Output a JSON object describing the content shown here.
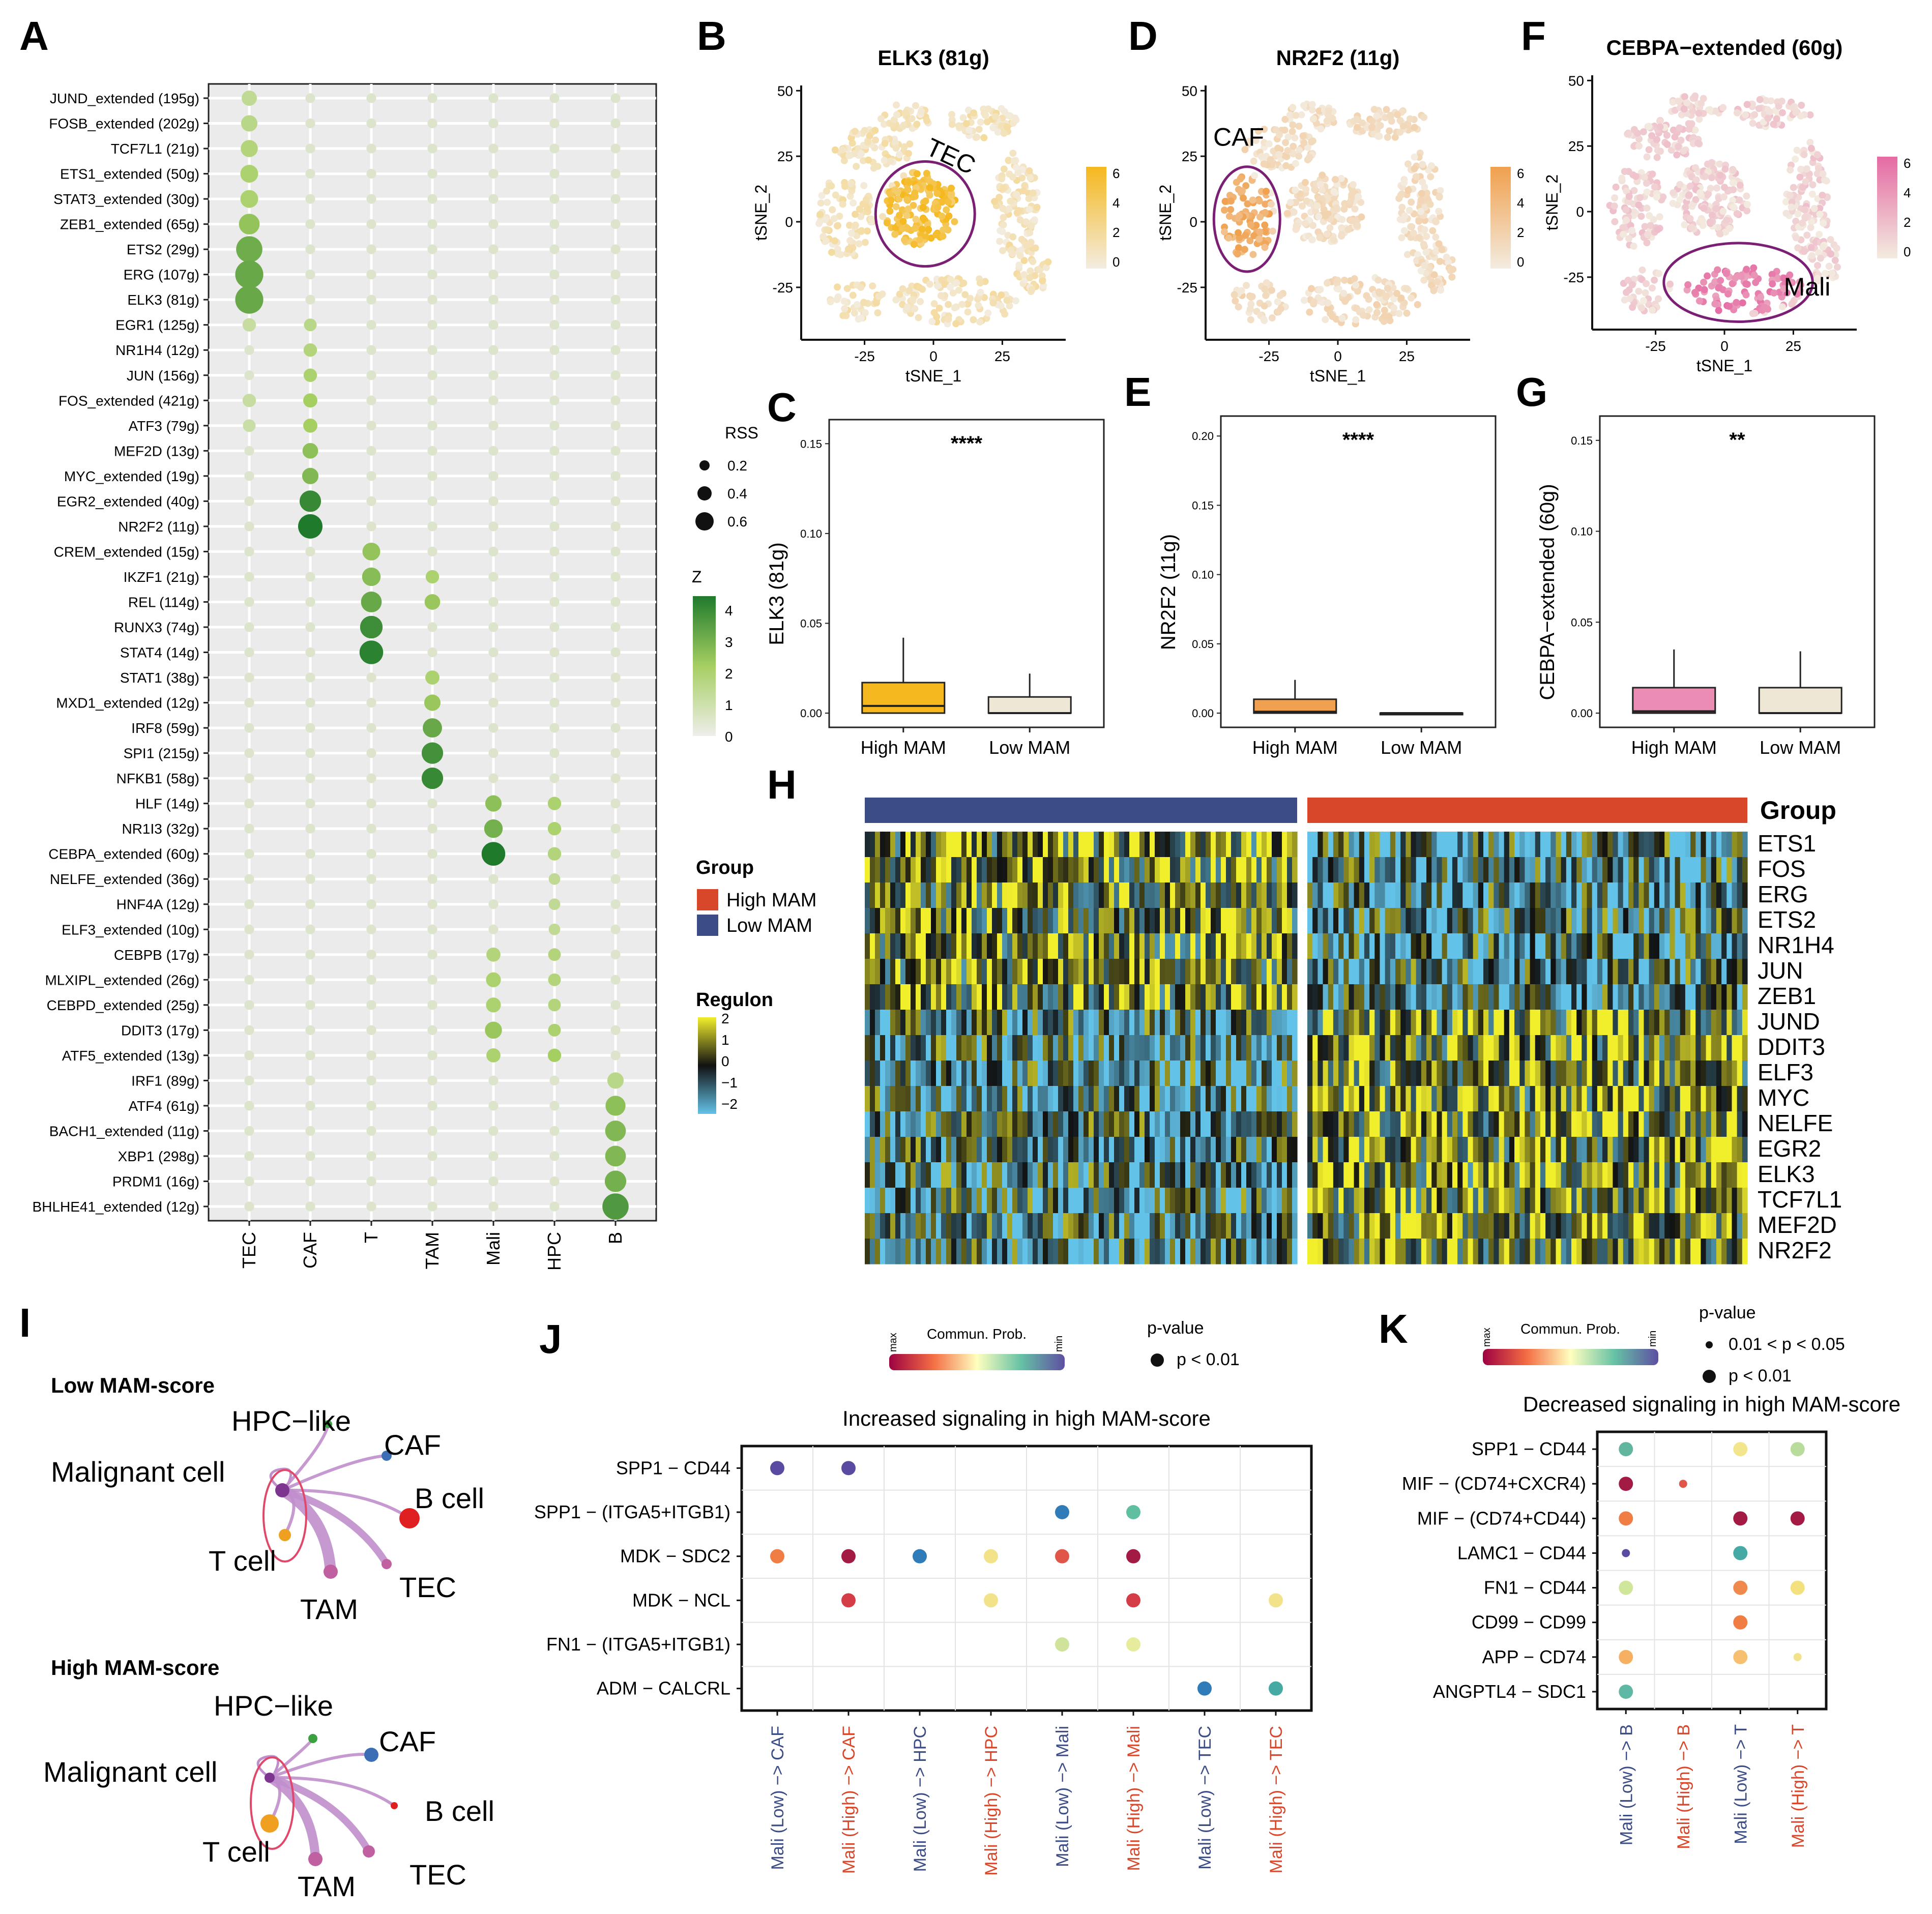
{
  "panel_letters": [
    "A",
    "B",
    "C",
    "D",
    "E",
    "F",
    "G",
    "H",
    "I",
    "J",
    "K"
  ],
  "colors": {
    "dot_low": "#e3ead6",
    "dot_mid": "#a6cf62",
    "dot_high": "#1f7a2c",
    "elk3_high": "#f5b81e",
    "nr2f2_high": "#f0a04e",
    "cebpa_high": "#e56aa3",
    "box_high_elk3": "#f5b81e",
    "box_high_nr2f2": "#f0a04e",
    "box_high_cebpa": "#ea8cb3",
    "box_low": "#efe7d6",
    "group_high": "#d9472b",
    "group_low": "#3b4c86",
    "outline": "#7a1f74",
    "label_high": "#d9472b",
    "label_low": "#3b4c86"
  },
  "chart_data": [
    {
      "panel": "A",
      "type": "scatter",
      "title": "",
      "xlabel": "",
      "ylabel": "",
      "x_categories": [
        "TEC",
        "CAF",
        "T",
        "TAM",
        "Mali",
        "HPC",
        "B"
      ],
      "y_categories": [
        "JUND_extended (195g)",
        "FOSB_extended (202g)",
        "TCF7L1 (21g)",
        "ETS1_extended (50g)",
        "STAT3_extended (30g)",
        "ZEB1_extended (65g)",
        "ETS2 (29g)",
        "ERG (107g)",
        "ELK3 (81g)",
        "EGR1 (125g)",
        "NR1H4 (12g)",
        "JUN (156g)",
        "FOS_extended (421g)",
        "ATF3 (79g)",
        "MEF2D (13g)",
        "MYC_extended (19g)",
        "EGR2_extended (40g)",
        "NR2F2 (11g)",
        "CREM_extended (15g)",
        "IKZF1 (21g)",
        "REL (114g)",
        "RUNX3 (74g)",
        "STAT4 (14g)",
        "STAT1 (38g)",
        "MXD1_extended (12g)",
        "IRF8 (59g)",
        "SPI1 (215g)",
        "NFKB1 (58g)",
        "HLF (14g)",
        "NR1I3 (32g)",
        "CEBPA_extended (60g)",
        "NELFE_extended (36g)",
        "HNF4A (12g)",
        "ELF3_extended (10g)",
        "CEBPB (17g)",
        "MLXIPL_extended (26g)",
        "CEBPD_extended (25g)",
        "DDIT3 (17g)",
        "ATF5_extended (13g)",
        "IRF1 (89g)",
        "ATF4 (61g)",
        "BACH1_extended (11g)",
        "XBP1 (298g)",
        "PRDM1 (16g)",
        "BHLHE41_extended (12g)"
      ],
      "highlights": [
        {
          "row": 0,
          "col": 0,
          "rss": 0.25,
          "z": 1.2
        },
        {
          "row": 1,
          "col": 0,
          "rss": 0.28,
          "z": 1.4
        },
        {
          "row": 2,
          "col": 0,
          "rss": 0.3,
          "z": 1.6
        },
        {
          "row": 3,
          "col": 0,
          "rss": 0.32,
          "z": 1.8
        },
        {
          "row": 4,
          "col": 0,
          "rss": 0.32,
          "z": 1.8
        },
        {
          "row": 5,
          "col": 0,
          "rss": 0.4,
          "z": 2.3
        },
        {
          "row": 6,
          "col": 0,
          "rss": 0.55,
          "z": 2.9
        },
        {
          "row": 7,
          "col": 0,
          "rss": 0.6,
          "z": 3.0
        },
        {
          "row": 8,
          "col": 0,
          "rss": 0.6,
          "z": 3.0
        },
        {
          "row": 9,
          "col": 0,
          "rss": 0.2,
          "z": 1.0
        },
        {
          "row": 12,
          "col": 0,
          "rss": 0.2,
          "z": 1.0
        },
        {
          "row": 13,
          "col": 0,
          "rss": 0.18,
          "z": 0.9
        },
        {
          "row": 9,
          "col": 1,
          "rss": 0.18,
          "z": 1.4
        },
        {
          "row": 10,
          "col": 1,
          "rss": 0.2,
          "z": 1.6
        },
        {
          "row": 11,
          "col": 1,
          "rss": 0.2,
          "z": 1.8
        },
        {
          "row": 12,
          "col": 1,
          "rss": 0.22,
          "z": 2.0
        },
        {
          "row": 13,
          "col": 1,
          "rss": 0.22,
          "z": 2.0
        },
        {
          "row": 14,
          "col": 1,
          "rss": 0.26,
          "z": 2.4
        },
        {
          "row": 15,
          "col": 1,
          "rss": 0.28,
          "z": 2.6
        },
        {
          "row": 16,
          "col": 1,
          "rss": 0.42,
          "z": 3.8
        },
        {
          "row": 17,
          "col": 1,
          "rss": 0.5,
          "z": 4.2
        },
        {
          "row": 18,
          "col": 2,
          "rss": 0.32,
          "z": 2.3
        },
        {
          "row": 19,
          "col": 2,
          "rss": 0.34,
          "z": 2.5
        },
        {
          "row": 20,
          "col": 2,
          "rss": 0.4,
          "z": 3.0
        },
        {
          "row": 21,
          "col": 2,
          "rss": 0.45,
          "z": 3.7
        },
        {
          "row": 22,
          "col": 2,
          "rss": 0.48,
          "z": 4.0
        },
        {
          "row": 19,
          "col": 3,
          "rss": 0.2,
          "z": 1.8
        },
        {
          "row": 20,
          "col": 3,
          "rss": 0.26,
          "z": 2.2
        },
        {
          "row": 23,
          "col": 3,
          "rss": 0.22,
          "z": 1.8
        },
        {
          "row": 24,
          "col": 3,
          "rss": 0.28,
          "z": 2.2
        },
        {
          "row": 25,
          "col": 3,
          "rss": 0.36,
          "z": 3.0
        },
        {
          "row": 26,
          "col": 3,
          "rss": 0.42,
          "z": 3.6
        },
        {
          "row": 27,
          "col": 3,
          "rss": 0.42,
          "z": 3.8
        },
        {
          "row": 28,
          "col": 4,
          "rss": 0.28,
          "z": 2.4
        },
        {
          "row": 29,
          "col": 4,
          "rss": 0.34,
          "z": 2.8
        },
        {
          "row": 30,
          "col": 4,
          "rss": 0.48,
          "z": 4.2
        },
        {
          "row": 34,
          "col": 4,
          "rss": 0.22,
          "z": 1.6
        },
        {
          "row": 35,
          "col": 4,
          "rss": 0.24,
          "z": 1.8
        },
        {
          "row": 36,
          "col": 4,
          "rss": 0.24,
          "z": 1.8
        },
        {
          "row": 37,
          "col": 4,
          "rss": 0.3,
          "z": 2.2
        },
        {
          "row": 38,
          "col": 4,
          "rss": 0.22,
          "z": 1.8
        },
        {
          "row": 28,
          "col": 5,
          "rss": 0.2,
          "z": 1.8
        },
        {
          "row": 29,
          "col": 5,
          "rss": 0.2,
          "z": 1.8
        },
        {
          "row": 30,
          "col": 5,
          "rss": 0.2,
          "z": 1.6
        },
        {
          "row": 31,
          "col": 5,
          "rss": 0.15,
          "z": 1.2
        },
        {
          "row": 32,
          "col": 5,
          "rss": 0.15,
          "z": 1.2
        },
        {
          "row": 33,
          "col": 5,
          "rss": 0.15,
          "z": 1.2
        },
        {
          "row": 34,
          "col": 5,
          "rss": 0.18,
          "z": 1.6
        },
        {
          "row": 35,
          "col": 5,
          "rss": 0.18,
          "z": 1.6
        },
        {
          "row": 36,
          "col": 5,
          "rss": 0.18,
          "z": 1.6
        },
        {
          "row": 37,
          "col": 5,
          "rss": 0.18,
          "z": 1.8
        },
        {
          "row": 38,
          "col": 5,
          "rss": 0.2,
          "z": 2.0
        },
        {
          "row": 39,
          "col": 6,
          "rss": 0.28,
          "z": 1.4
        },
        {
          "row": 40,
          "col": 6,
          "rss": 0.38,
          "z": 2.4
        },
        {
          "row": 41,
          "col": 6,
          "rss": 0.4,
          "z": 2.6
        },
        {
          "row": 42,
          "col": 6,
          "rss": 0.4,
          "z": 2.6
        },
        {
          "row": 43,
          "col": 6,
          "rss": 0.42,
          "z": 2.8
        },
        {
          "row": 44,
          "col": 6,
          "rss": 0.55,
          "z": 3.4
        }
      ],
      "legend": {
        "rss_title": "RSS",
        "rss_values": [
          "0.2",
          "0.4",
          "0.6"
        ],
        "z_title": "Z",
        "z_ticks": [
          "4",
          "3",
          "2",
          "1",
          "0"
        ]
      }
    },
    {
      "panel": "B",
      "type": "scatter",
      "title": "ELK3 (81g)",
      "xlabel": "tSNE_1",
      "ylabel": "tSNE_2",
      "x_ticks": [
        "-25",
        "0",
        "25"
      ],
      "y_ticks": [
        "50",
        "25",
        "0",
        "-25"
      ],
      "xlim": [
        -48,
        48
      ],
      "ylim": [
        -45,
        52
      ],
      "legend_ticks": [
        "6",
        "4",
        "2",
        "0"
      ],
      "annotation": "TEC"
    },
    {
      "panel": "D",
      "type": "scatter",
      "title": "NR2F2 (11g)",
      "xlabel": "tSNE_1",
      "ylabel": "tSNE_2",
      "x_ticks": [
        "-25",
        "0",
        "25"
      ],
      "y_ticks": [
        "50",
        "25",
        "0",
        "-25"
      ],
      "xlim": [
        -48,
        48
      ],
      "ylim": [
        -45,
        52
      ],
      "legend_ticks": [
        "6",
        "4",
        "2",
        "0"
      ],
      "annotation": "CAF"
    },
    {
      "panel": "F",
      "type": "scatter",
      "title": "CEBPA−extended (60g)",
      "xlabel": "tSNE_1",
      "ylabel": "tSNE_2",
      "x_ticks": [
        "-25",
        "0",
        "25"
      ],
      "y_ticks": [
        "50",
        "25",
        "0",
        "-25"
      ],
      "xlim": [
        -48,
        48
      ],
      "ylim": [
        -45,
        52
      ],
      "legend_ticks": [
        "6",
        "4",
        "2",
        "0"
      ],
      "annotation": "Mali"
    },
    {
      "panel": "C",
      "type": "bar",
      "title": "",
      "xlabel": "",
      "ylabel": "ELK3 (81g)",
      "categories": [
        "High MAM",
        "Low MAM"
      ],
      "y_ticks": [
        "0.15",
        "0.10",
        "0.05",
        "0.00"
      ],
      "ylim": [
        0,
        0.16
      ],
      "boxes": [
        {
          "q1": 0.0,
          "median": 0.004,
          "q3": 0.017,
          "whisker": 0.042
        },
        {
          "q1": 0.0,
          "median": 0.0,
          "q3": 0.009,
          "whisker": 0.022
        }
      ],
      "significance": "****"
    },
    {
      "panel": "E",
      "type": "bar",
      "title": "",
      "xlabel": "",
      "ylabel": "NR2F2 (11g)",
      "categories": [
        "High MAM",
        "Low MAM"
      ],
      "y_ticks": [
        "0.20",
        "0.15",
        "0.10",
        "0.05",
        "0.00"
      ],
      "ylim": [
        0,
        0.21
      ],
      "boxes": [
        {
          "q1": 0.0,
          "median": 0.001,
          "q3": 0.01,
          "whisker": 0.024
        },
        {
          "q1": 0.0,
          "median": 0.0,
          "q3": 0.0,
          "whisker": 0.0
        }
      ],
      "significance": "****"
    },
    {
      "panel": "G",
      "type": "bar",
      "title": "",
      "xlabel": "",
      "ylabel": "CEBPA−extended (60g)",
      "categories": [
        "High MAM",
        "Low MAM"
      ],
      "y_ticks": [
        "0.15",
        "0.10",
        "0.05",
        "0.00"
      ],
      "ylim": [
        0,
        0.16
      ],
      "boxes": [
        {
          "q1": 0.0,
          "median": 0.001,
          "q3": 0.014,
          "whisker": 0.035
        },
        {
          "q1": 0.0,
          "median": 0.0,
          "q3": 0.014,
          "whisker": 0.034
        }
      ],
      "significance": "**"
    },
    {
      "panel": "H",
      "type": "heatmap",
      "rows": [
        "ETS1",
        "FOS",
        "ERG",
        "ETS2",
        "NR1H4",
        "JUN",
        "ZEB1",
        "JUND",
        "DDIT3",
        "ELF3",
        "MYC",
        "NELFE",
        "EGR2",
        "ELK3",
        "TCF7L1",
        "MEF2D",
        "NR2F2"
      ],
      "groups": [
        "Low MAM",
        "High MAM"
      ],
      "legend": {
        "group_title": "Group",
        "group_items": [
          "High MAM",
          "Low MAM"
        ],
        "regulon_title": "Regulon",
        "regulon_ticks": [
          "2",
          "1",
          "0",
          "−1",
          "−2"
        ]
      },
      "right_title": "Group"
    },
    {
      "panel": "J",
      "type": "scatter",
      "title": "Increased signaling in high MAM-score",
      "y_categories": [
        "SPP1 − CD44",
        "SPP1 − (ITGA5+ITGB1)",
        "MDK − SDC2",
        "MDK − NCL",
        "FN1 − (ITGA5+ITGB1)",
        "ADM − CALCRL"
      ],
      "x_categories": [
        "Mali (Low) −> CAF",
        "Mali (High) −> CAF",
        "Mali (Low) −> HPC",
        "Mali (High) −> HPC",
        "Mali (Low) −> Mali",
        "Mali (High) −> Mali",
        "Mali (Low) −> TEC",
        "Mali (High) −> TEC"
      ],
      "points": [
        {
          "row": 0,
          "col": 0,
          "color": "#5b4ba0"
        },
        {
          "row": 0,
          "col": 1,
          "color": "#5b4ba0"
        },
        {
          "row": 1,
          "col": 4,
          "color": "#2f7cb8"
        },
        {
          "row": 1,
          "col": 5,
          "color": "#5fbfa0"
        },
        {
          "row": 2,
          "col": 0,
          "color": "#ef7d44"
        },
        {
          "row": 2,
          "col": 1,
          "color": "#a31a45"
        },
        {
          "row": 2,
          "col": 2,
          "color": "#2f7cb8"
        },
        {
          "row": 2,
          "col": 3,
          "color": "#f2e38a"
        },
        {
          "row": 2,
          "col": 4,
          "color": "#e0574a"
        },
        {
          "row": 2,
          "col": 5,
          "color": "#a31a45"
        },
        {
          "row": 3,
          "col": 1,
          "color": "#d43c48"
        },
        {
          "row": 3,
          "col": 3,
          "color": "#f2e38a"
        },
        {
          "row": 3,
          "col": 5,
          "color": "#d43c48"
        },
        {
          "row": 3,
          "col": 7,
          "color": "#f2e38a"
        },
        {
          "row": 4,
          "col": 4,
          "color": "#cfe39a"
        },
        {
          "row": 4,
          "col": 5,
          "color": "#e6ec9c"
        },
        {
          "row": 5,
          "col": 6,
          "color": "#2f7cb8"
        },
        {
          "row": 5,
          "col": 7,
          "color": "#45aaa3"
        }
      ],
      "legend": {
        "prob_title": "Commun. Prob.",
        "max": "max",
        "min": "min",
        "p_title": "p-value",
        "p_items": [
          "p < 0.01"
        ]
      }
    },
    {
      "panel": "K",
      "type": "scatter",
      "title": "Decreased signaling in high MAM-score",
      "y_categories": [
        "SPP1 − CD44",
        "MIF − (CD74+CXCR4)",
        "MIF − (CD74+CD44)",
        "LAMC1 − CD44",
        "FN1 − CD44",
        "CD99 − CD99",
        "APP − CD74",
        "ANGPTL4 − SDC1"
      ],
      "x_categories": [
        "Mali (Low) −> B",
        "Mali (High) −> B",
        "Mali (Low) −> T",
        "Mali (High) −> T"
      ],
      "points": [
        {
          "row": 0,
          "col": 0,
          "color": "#62b6a0",
          "size": "large"
        },
        {
          "row": 0,
          "col": 2,
          "color": "#f3e58c",
          "size": "large"
        },
        {
          "row": 0,
          "col": 3,
          "color": "#b9dc9c",
          "size": "large"
        },
        {
          "row": 1,
          "col": 0,
          "color": "#a31a45",
          "size": "large"
        },
        {
          "row": 1,
          "col": 1,
          "color": "#e0574a",
          "size": "small"
        },
        {
          "row": 2,
          "col": 0,
          "color": "#ef7d44",
          "size": "large"
        },
        {
          "row": 2,
          "col": 2,
          "color": "#a31a45",
          "size": "large"
        },
        {
          "row": 2,
          "col": 3,
          "color": "#a31a45",
          "size": "large"
        },
        {
          "row": 3,
          "col": 0,
          "color": "#5b4ba0",
          "size": "small"
        },
        {
          "row": 3,
          "col": 2,
          "color": "#45aaa3",
          "size": "large"
        },
        {
          "row": 4,
          "col": 0,
          "color": "#d0e69a",
          "size": "large"
        },
        {
          "row": 4,
          "col": 2,
          "color": "#f08a4c",
          "size": "large"
        },
        {
          "row": 4,
          "col": 3,
          "color": "#f3e07e",
          "size": "large"
        },
        {
          "row": 5,
          "col": 2,
          "color": "#ef7d44",
          "size": "large"
        },
        {
          "row": 6,
          "col": 0,
          "color": "#f6b062",
          "size": "large"
        },
        {
          "row": 6,
          "col": 2,
          "color": "#f6c070",
          "size": "large"
        },
        {
          "row": 6,
          "col": 3,
          "color": "#f2e38a",
          "size": "small"
        },
        {
          "row": 7,
          "col": 0,
          "color": "#5fb8a4",
          "size": "large"
        }
      ],
      "legend": {
        "prob_title": "Commun. Prob.",
        "max": "max",
        "min": "min",
        "p_title": "p-value",
        "p_items": [
          "0.01 < p < 0.05",
          "p < 0.01"
        ]
      }
    },
    {
      "panel": "I",
      "type": "other",
      "networks": [
        {
          "title": "Low MAM-score",
          "nodes": [
            "HPC−like",
            "CAF",
            "Malignant cell",
            "B cell",
            "T cell",
            "TEC",
            "TAM"
          ]
        },
        {
          "title": "High MAM-score",
          "nodes": [
            "HPC−like",
            "CAF",
            "Malignant cell",
            "B cell",
            "T cell",
            "TEC",
            "TAM"
          ]
        }
      ]
    }
  ]
}
